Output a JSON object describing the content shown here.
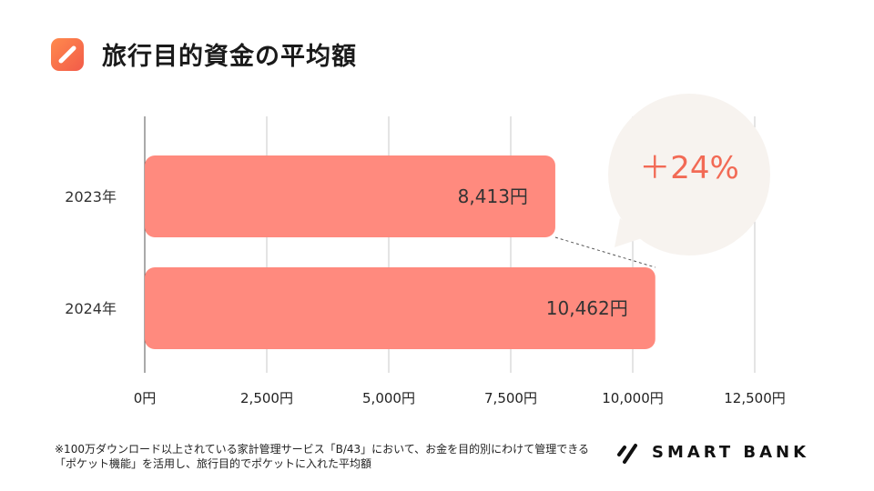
{
  "header": {
    "title": "旅行目的資金の平均額",
    "icon": "pencil-icon"
  },
  "colors": {
    "bar": "#ff8a7e",
    "grid": "#c8c8c8",
    "bubble": "#f7f3ef",
    "accent": "#f26a55",
    "badge_start": "#ff8a4c",
    "badge_end": "#f25b4a"
  },
  "chart_data": {
    "type": "bar",
    "orientation": "horizontal",
    "categories": [
      "2023年",
      "2024年"
    ],
    "values": [
      8413,
      10462
    ],
    "value_labels": [
      "8,413円",
      "10,462円"
    ],
    "xlim": [
      0,
      12500
    ],
    "xticks": [
      0,
      2500,
      5000,
      7500,
      10000,
      12500
    ],
    "xtick_labels": [
      "0円",
      "2,500円",
      "5,000円",
      "7,500円",
      "10,000円",
      "12,500円"
    ],
    "grid": true,
    "annotation": "＋24%"
  },
  "footnote": "※100万ダウンロード以上されている家計管理サービス「B/43」において、お金を目的別にわけて管理できる「ポケット機能」を活用し、旅行目的でポケットに入れた平均額",
  "brand": {
    "name": "SMART BANK",
    "icon": "smartbank-logo-icon"
  }
}
